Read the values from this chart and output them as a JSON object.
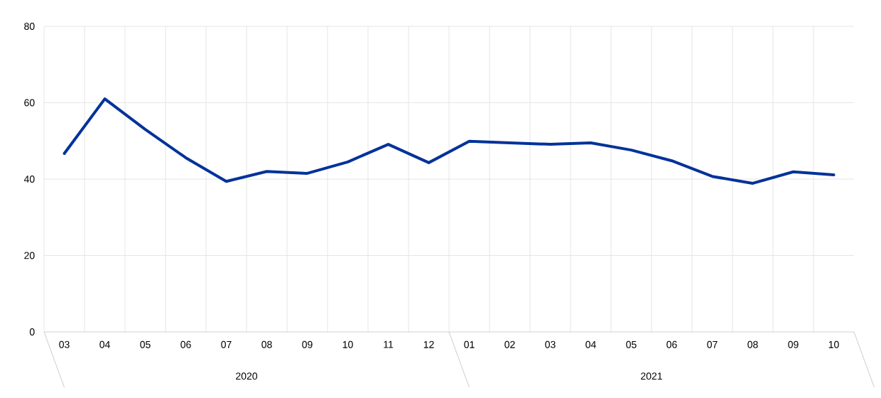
{
  "chart_data": {
    "type": "line",
    "categories": [
      "03",
      "04",
      "05",
      "06",
      "07",
      "08",
      "09",
      "10",
      "11",
      "12",
      "01",
      "02",
      "03",
      "04",
      "05",
      "06",
      "07",
      "08",
      "09",
      "10"
    ],
    "series": [
      {
        "color": "#003299",
        "values": [
          46.7,
          61.0,
          53.0,
          45.6,
          39.4,
          42.0,
          41.5,
          44.5,
          49.1,
          44.3,
          49.9,
          49.5,
          49.1,
          49.5,
          47.6,
          44.8,
          40.7,
          38.9,
          41.9,
          41.1
        ]
      }
    ],
    "ylim": [
      0,
      80
    ],
    "yticks": [
      0,
      20,
      40,
      60,
      80
    ],
    "grid": true,
    "annotations": [
      "2020",
      "2021"
    ]
  }
}
